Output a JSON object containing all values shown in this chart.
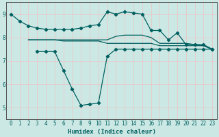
{
  "xlabel": "Humidex (Indice chaleur)",
  "bg_color": "#cce8e4",
  "grid_color": "#e8c8c8",
  "line_color": "#006060",
  "xlim": [
    -0.5,
    23.5
  ],
  "ylim": [
    4.5,
    9.5
  ],
  "yticks": [
    5,
    6,
    7,
    8,
    9
  ],
  "xticks": [
    0,
    1,
    2,
    3,
    4,
    5,
    6,
    7,
    8,
    9,
    10,
    11,
    12,
    13,
    14,
    15,
    16,
    17,
    18,
    19,
    20,
    21,
    22,
    23
  ],
  "line1_x": [
    0,
    1,
    2,
    3,
    4,
    5,
    6,
    7,
    8,
    9,
    10,
    11,
    12,
    13,
    14,
    15,
    16,
    17,
    18,
    19,
    20,
    21,
    22,
    23
  ],
  "line1_y": [
    9.0,
    8.7,
    8.5,
    8.4,
    8.35,
    8.35,
    8.35,
    8.35,
    8.4,
    8.5,
    8.55,
    9.1,
    9.0,
    9.1,
    9.05,
    9.0,
    8.3,
    8.3,
    7.9,
    8.2,
    7.7,
    7.7,
    7.7,
    7.5
  ],
  "line2_x": [
    2,
    3,
    4,
    5,
    6,
    7,
    8,
    9,
    10,
    11,
    12,
    13,
    14,
    15,
    16,
    17,
    18,
    19,
    20,
    21,
    22,
    23
  ],
  "line2_y": [
    7.9,
    7.9,
    7.9,
    7.9,
    7.9,
    7.9,
    7.9,
    7.9,
    7.9,
    7.9,
    8.05,
    8.1,
    8.1,
    8.1,
    8.0,
    7.75,
    7.75,
    7.75,
    7.75,
    7.7,
    7.65,
    7.5
  ],
  "line3_x": [
    2,
    3,
    4,
    5,
    6,
    7,
    8,
    9,
    10,
    11,
    12,
    13,
    14,
    15,
    16,
    17,
    18,
    19,
    20,
    21,
    22,
    23
  ],
  "line3_y": [
    7.9,
    7.9,
    7.9,
    7.9,
    7.85,
    7.85,
    7.85,
    7.85,
    7.85,
    7.75,
    7.75,
    7.75,
    7.75,
    7.75,
    7.75,
    7.65,
    7.65,
    7.65,
    7.65,
    7.65,
    7.65,
    7.5
  ],
  "line4_x": [
    3,
    4,
    5,
    6,
    7,
    8,
    9,
    10,
    11,
    12,
    13,
    14,
    15,
    16,
    17,
    18,
    19,
    20,
    21,
    22,
    23
  ],
  "line4_y": [
    7.4,
    7.4,
    7.4,
    6.6,
    5.8,
    5.1,
    5.15,
    5.2,
    7.2,
    7.5,
    7.5,
    7.5,
    7.5,
    7.5,
    7.5,
    7.5,
    7.5,
    7.5,
    7.5,
    7.5,
    7.5
  ]
}
